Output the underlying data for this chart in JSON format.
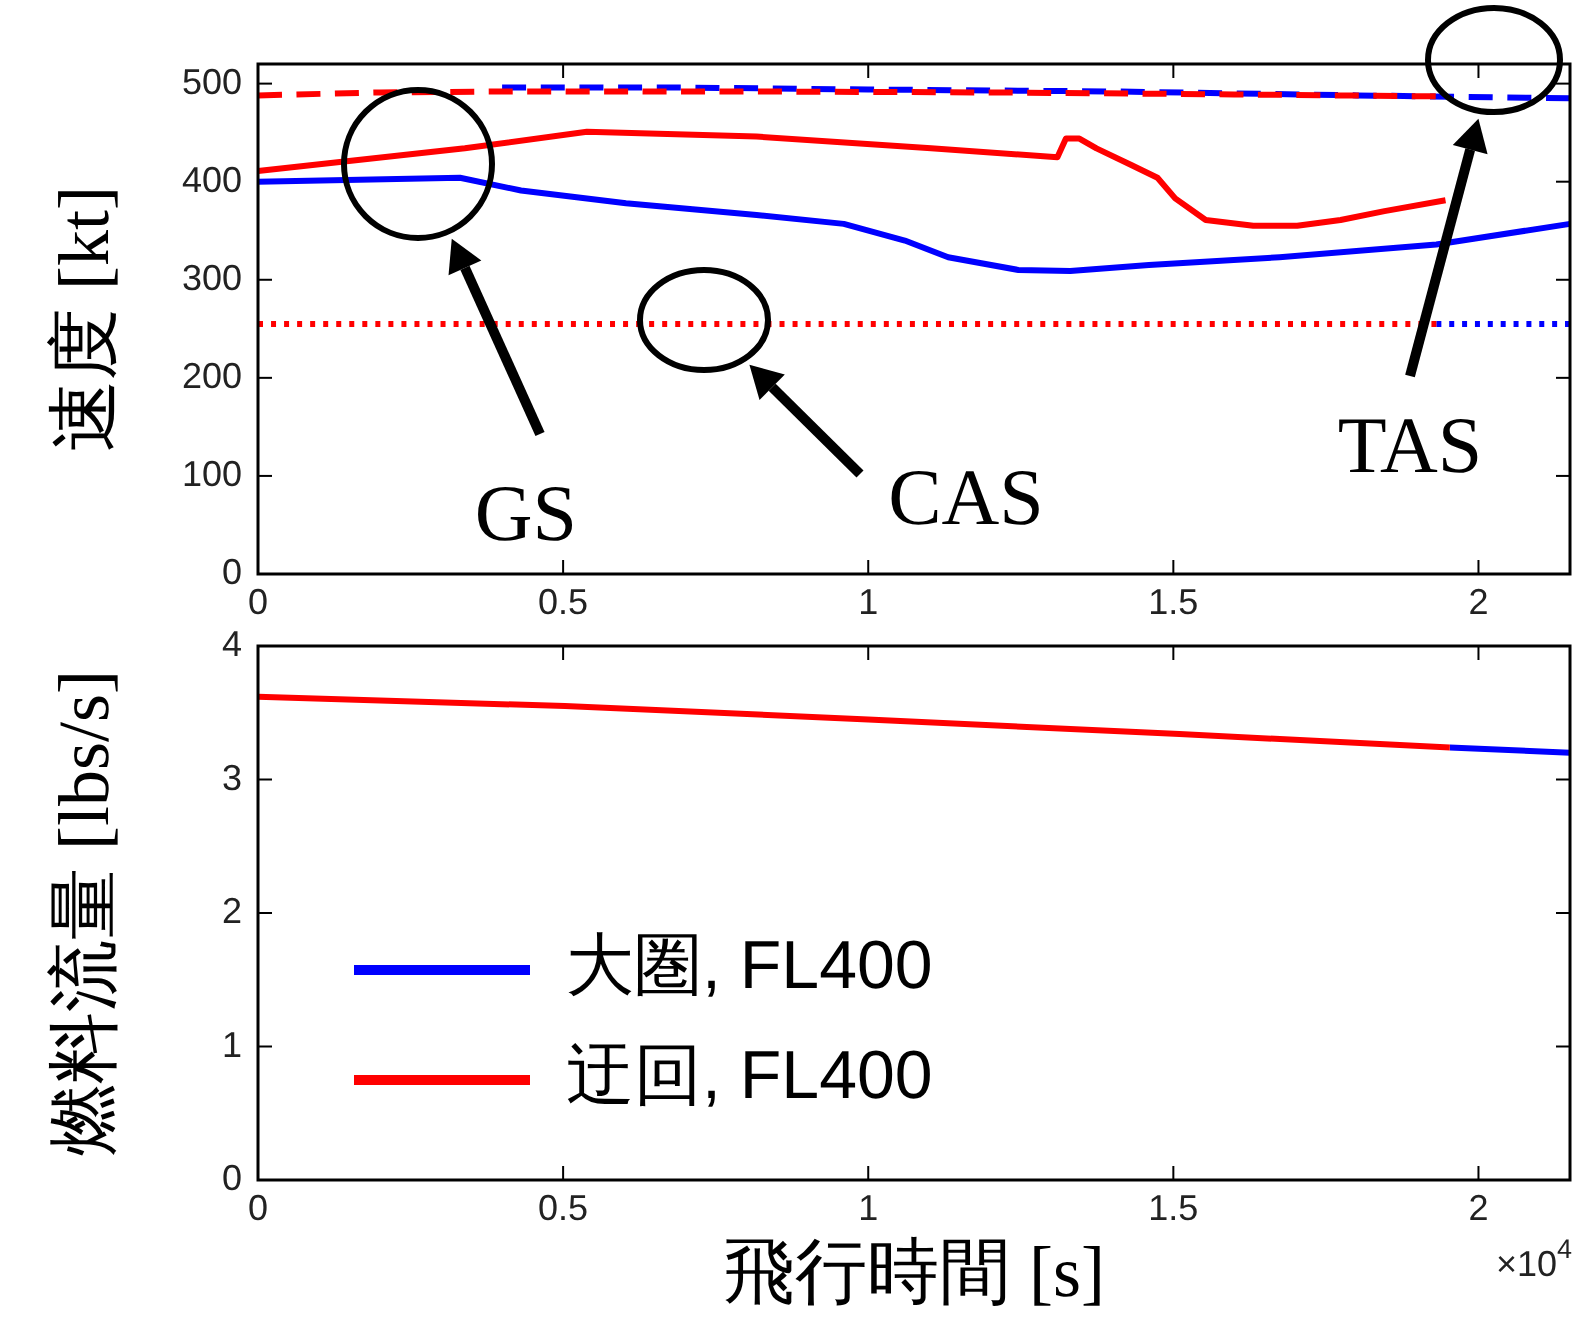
{
  "chart_data": [
    {
      "type": "line",
      "ylabel": "速度 [kt]",
      "xlim": [
        0,
        2.15
      ],
      "xticks": [
        0,
        0.5,
        1,
        1.5,
        2
      ],
      "ylim": [
        0,
        520
      ],
      "yticks": [
        0,
        100,
        200,
        300,
        400,
        500
      ],
      "series": [
        {
          "color": "#0000ff",
          "line_style": "dashed",
          "x": [
            0.4,
            0.7,
            1.0,
            1.4,
            1.8,
            2.15
          ],
          "values": [
            496,
            496,
            494,
            492,
            488,
            485
          ]
        },
        {
          "color": "#ff0000",
          "line_style": "dashed",
          "x": [
            0,
            0.2,
            0.4,
            0.8,
            1.2,
            1.6,
            1.93
          ],
          "values": [
            488,
            491,
            492,
            492,
            491,
            489,
            487
          ]
        },
        {
          "color": "#0000ff",
          "line_style": "solid",
          "x": [
            0,
            0.331,
            0.431,
            0.603,
            0.817,
            0.96,
            1.06,
            1.131,
            1.246,
            1.331,
            1.46,
            1.674,
            1.931,
            2.15
          ],
          "values": [
            400,
            404,
            391,
            378,
            366,
            357,
            340,
            323,
            310,
            309,
            315,
            323,
            336,
            357
          ]
        },
        {
          "color": "#ff0000",
          "line_style": "solid",
          "x": [
            0,
            0.339,
            0.539,
            0.817,
            1.103,
            1.31,
            1.324,
            1.346,
            1.374,
            1.431,
            1.474,
            1.503,
            1.553,
            1.631,
            1.703,
            1.774,
            1.846,
            1.946
          ],
          "values": [
            411,
            434,
            451,
            446,
            434,
            425,
            444,
            444,
            434,
            417,
            404,
            383,
            361,
            355,
            355,
            361,
            370,
            381
          ]
        },
        {
          "color": "#0000ff",
          "line_style": "dotted",
          "x": [
            1.931,
            2.15
          ],
          "values": [
            255,
            255
          ]
        },
        {
          "color": "#ff0000",
          "line_style": "dotted",
          "x": [
            0,
            1.931
          ],
          "values": [
            255,
            255
          ]
        }
      ],
      "annotations": [
        "GS",
        "CAS",
        "TAS"
      ]
    },
    {
      "type": "line",
      "xlabel": "飛行時間 [s]",
      "ylabel": "燃料流量 [lbs/s]",
      "xlim": [
        0,
        2.15
      ],
      "xticks": [
        0,
        0.5,
        1,
        1.5,
        2
      ],
      "ylim": [
        0,
        4
      ],
      "yticks": [
        0,
        1,
        2,
        3,
        4
      ],
      "legend": "bottom left",
      "series": [
        {
          "name": "大圏, FL400",
          "color": "#0000ff",
          "line_style": "solid",
          "x": [
            1.953,
            2.15
          ],
          "values": [
            3.24,
            3.2
          ]
        },
        {
          "name": "迂回, FL400",
          "color": "#ff0000",
          "line_style": "solid",
          "x": [
            0,
            0.503,
            1.0,
            1.51,
            1.953
          ],
          "values": [
            3.62,
            3.55,
            3.45,
            3.34,
            3.24
          ]
        }
      ],
      "annotations": [
        "×10$^{4}$"
      ]
    }
  ]
}
